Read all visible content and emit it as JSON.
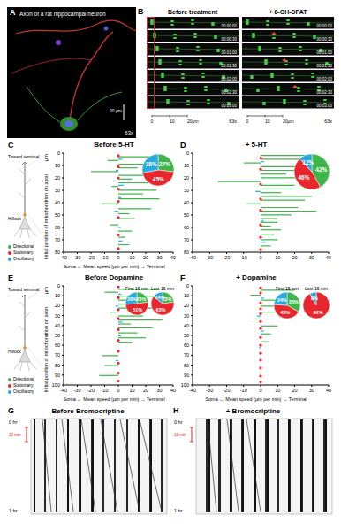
{
  "panels": {
    "A": {
      "label": "A",
      "text": "Axon of a rat hippocampal neuron",
      "magnification": "63x",
      "scale": "20 µm"
    },
    "B": {
      "label": "B",
      "columns": [
        {
          "title": "Before treatment",
          "times": [
            "00:00:00",
            "00:00:30",
            "00:01:00",
            "00:01:30",
            "00:02:00",
            "00:02:30",
            "00:03:00"
          ]
        },
        {
          "title": "+ 8-OH-DPAT",
          "times": [
            "00:00:00",
            "00:00:30",
            "00:01:00",
            "00:01:30",
            "00:02:00",
            "00:02:30",
            "00:03:00"
          ]
        }
      ],
      "scale_labels": [
        "0",
        "10",
        "20µm"
      ],
      "magnification": "63x"
    },
    "G": {
      "label": "G",
      "title": "Before Bromocriptine",
      "start": "0 hr",
      "end": "1 hr",
      "scale": "10 min"
    },
    "H": {
      "label": "H",
      "title": "+ Bromocriptine",
      "start": "0 hr",
      "end": "1 hr",
      "scale": "10 min"
    }
  },
  "schematic": {
    "toward_terminal": "Toward terminal",
    "hillock": "Hillock"
  },
  "chart_data": [
    {
      "panel": "C",
      "type": "bar",
      "orientation": "horizontal",
      "title": "Before 5-HT",
      "x_label": "Soma ← Mean speed (µm per min) → Terminal",
      "y_label": "Initial position of mitochondrion on axon",
      "y_unit": "µm",
      "legend": "left",
      "xlim": [
        -40,
        40
      ],
      "xticks": [
        -40,
        -30,
        -20,
        -10,
        0,
        10,
        20,
        30,
        40
      ],
      "ylim": [
        0,
        80
      ],
      "yticks": [
        0,
        10,
        20,
        30,
        40,
        50,
        60,
        70,
        80
      ],
      "series": [
        {
          "name": "Directional",
          "color": "#3db54a",
          "y": [
            3,
            6,
            9,
            12,
            15,
            18,
            21,
            24,
            27,
            30,
            33,
            37,
            41,
            45,
            49,
            53,
            58,
            63,
            68,
            74
          ],
          "values": [
            25,
            -8,
            32,
            14,
            -20,
            35,
            10,
            22,
            -5,
            28,
            18,
            30,
            -12,
            24,
            8,
            12,
            -6,
            10,
            5,
            8
          ]
        },
        {
          "name": "Stationary",
          "color": "#e8262b",
          "marker": "dot",
          "y": [
            2,
            11,
            20,
            29,
            39,
            52,
            66,
            77
          ],
          "values": [
            0,
            0,
            0,
            0,
            0,
            0,
            0,
            0
          ]
        },
        {
          "name": "Oscillatory",
          "color": "#29abe2",
          "y": [
            5,
            14,
            26,
            36,
            47,
            60,
            71
          ],
          "values": [
            3,
            -2,
            4,
            2,
            -3,
            2,
            3
          ]
        }
      ],
      "pies": [
        {
          "type": "pie",
          "categories": [
            "Directional",
            "Stationary",
            "Oscillatory"
          ],
          "values": [
            27,
            45,
            28
          ],
          "value_labels": [
            "27%",
            "45%",
            "28%"
          ],
          "colors": [
            "#3db54a",
            "#e8262b",
            "#29abe2"
          ]
        }
      ]
    },
    {
      "panel": "D",
      "type": "bar",
      "orientation": "horizontal",
      "title": "+ 5-HT",
      "xlim": [
        -40,
        40
      ],
      "xticks": [
        -40,
        -30,
        -20,
        -10,
        0,
        10,
        20,
        30,
        40
      ],
      "ylim": [
        0,
        80
      ],
      "yticks": [
        0,
        10,
        20,
        30,
        40,
        50,
        60,
        70,
        80
      ],
      "series": [
        {
          "name": "Directional",
          "color": "#3db54a",
          "y": [
            2,
            5,
            8,
            11,
            14,
            17,
            20,
            23,
            26,
            29,
            32,
            35,
            38,
            41,
            44,
            47,
            50,
            53,
            56,
            59,
            62,
            66,
            70,
            75
          ],
          "values": [
            30,
            35,
            -10,
            28,
            32,
            15,
            36,
            -25,
            20,
            34,
            12,
            30,
            26,
            -8,
            22,
            33,
            18,
            10,
            10,
            6,
            12,
            8,
            10,
            6
          ]
        },
        {
          "name": "Stationary",
          "color": "#e8262b",
          "marker": "dot",
          "y": [
            4,
            13,
            25,
            37,
            46,
            58,
            68,
            78
          ],
          "values": [
            0,
            0,
            0,
            0,
            0,
            0,
            0,
            0
          ]
        },
        {
          "name": "Oscillatory",
          "color": "#29abe2",
          "y": [
            7,
            31,
            55,
            72
          ],
          "values": [
            2,
            -3,
            2,
            3
          ]
        }
      ],
      "pies": [
        {
          "type": "pie",
          "categories": [
            "Directional",
            "Stationary",
            "Oscillatory"
          ],
          "values": [
            42,
            46,
            12
          ],
          "value_labels": [
            "42%",
            "46%",
            "12%"
          ],
          "colors": [
            "#3db54a",
            "#e8262b",
            "#29abe2"
          ]
        }
      ]
    },
    {
      "panel": "E",
      "type": "bar",
      "orientation": "horizontal",
      "title": "Before Dopamine",
      "x_label": "Soma ← Mean speed (µm per min) → Terminal",
      "y_label": "Initial position of mitochondrion on axon",
      "y_unit": "µm",
      "legend": "left",
      "xlim": [
        -40,
        40
      ],
      "xticks": [
        -40,
        -30,
        -20,
        -10,
        0,
        10,
        20,
        30,
        40
      ],
      "ylim": [
        0,
        100
      ],
      "yticks": [
        0,
        10,
        20,
        30,
        40,
        50,
        60,
        70,
        80,
        90,
        100
      ],
      "series": [
        {
          "name": "Directional",
          "color": "#3db54a",
          "y": [
            3,
            6,
            10,
            14,
            18,
            22,
            26,
            30,
            34,
            38,
            42,
            47,
            52,
            57,
            70,
            80,
            90
          ],
          "values": [
            30,
            -10,
            36,
            22,
            12,
            28,
            -6,
            18,
            32,
            9,
            25,
            14,
            20,
            10,
            -12,
            -10,
            -14
          ]
        },
        {
          "name": "Stationary",
          "color": "#e8262b",
          "marker": "dot",
          "y": [
            1,
            12,
            24,
            33,
            44,
            55,
            66,
            78,
            88,
            96
          ],
          "values": [
            0,
            0,
            0,
            0,
            0,
            0,
            0,
            0,
            0,
            0
          ]
        },
        {
          "name": "Oscillatory",
          "color": "#29abe2",
          "y": [
            8,
            20,
            36,
            50,
            75
          ],
          "values": [
            2,
            -2,
            3,
            2,
            -2
          ]
        }
      ],
      "pies": [
        {
          "type": "pie",
          "title": "First 15 min",
          "categories": [
            "Directional",
            "Stationary",
            "Oscillatory"
          ],
          "values": [
            23,
            51,
            26
          ],
          "value_labels": [
            "23%",
            "51%",
            "26%"
          ],
          "colors": [
            "#3db54a",
            "#e8262b",
            "#29abe2"
          ]
        },
        {
          "type": "pie",
          "title": "Last 15 min",
          "categories": [
            "Directional",
            "Stationary",
            "Oscillatory"
          ],
          "values": [
            23,
            63,
            14
          ],
          "value_labels": [
            "23%",
            "63%",
            "14%"
          ],
          "colors": [
            "#3db54a",
            "#e8262b",
            "#29abe2"
          ]
        }
      ]
    },
    {
      "panel": "F",
      "type": "bar",
      "orientation": "horizontal",
      "title": "+ Dopamine",
      "x_label": "Soma ← Mean speed (µm per min) → Terminal",
      "xlim": [
        -40,
        40
      ],
      "xticks": [
        -40,
        -30,
        -20,
        -10,
        0,
        10,
        20,
        30,
        40
      ],
      "ylim": [
        0,
        100
      ],
      "yticks": [
        0,
        10,
        20,
        30,
        40,
        50,
        60,
        70,
        80,
        90,
        100
      ],
      "series": [
        {
          "name": "Directional",
          "color": "#3db54a",
          "y": [
            4,
            9,
            14,
            20,
            26,
            33,
            40,
            48,
            56
          ],
          "values": [
            20,
            -6,
            15,
            8,
            12,
            -4,
            10,
            6,
            5
          ]
        },
        {
          "name": "Stationary",
          "color": "#e8262b",
          "marker": "dot",
          "y": [
            2,
            7,
            17,
            23,
            28,
            36,
            43,
            52,
            60,
            68,
            75,
            83,
            91,
            97
          ],
          "values": [
            0,
            0,
            0,
            0,
            0,
            0,
            0,
            0,
            0,
            0,
            0,
            0,
            0,
            0
          ]
        },
        {
          "name": "Oscillatory",
          "color": "#29abe2",
          "y": [
            12,
            30,
            45,
            62
          ],
          "values": [
            2,
            -2,
            2,
            -1
          ]
        }
      ],
      "pies": [
        {
          "type": "pie",
          "title": "First 15 min",
          "categories": [
            "Directional",
            "Stationary",
            "Oscillatory"
          ],
          "values": [
            33,
            43,
            24
          ],
          "value_labels": [
            "33%",
            "43%",
            "24%"
          ],
          "colors": [
            "#3db54a",
            "#e8262b",
            "#29abe2"
          ]
        },
        {
          "type": "pie",
          "title": "Last 15 min",
          "categories": [
            "Stationary",
            "Oscillatory"
          ],
          "values": [
            92,
            8
          ],
          "value_labels": [
            "92%",
            "8%"
          ],
          "colors": [
            "#e8262b",
            "#29abe2"
          ]
        }
      ]
    }
  ]
}
